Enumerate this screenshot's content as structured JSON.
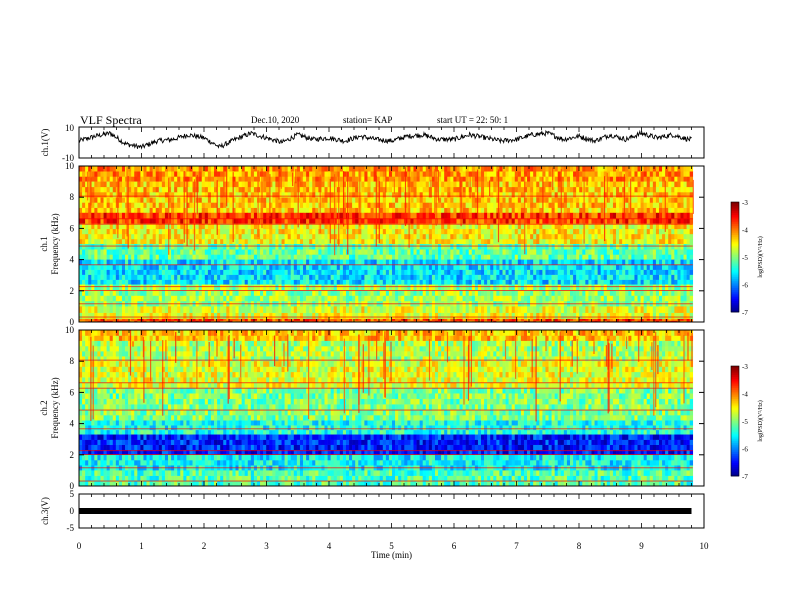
{
  "header": {
    "title": "VLF Spectra",
    "date": "Dec.10, 2020",
    "station": "station= KAP",
    "start_ut": "start  UT =  22: 50: 1"
  },
  "chart_data": [
    {
      "type": "line",
      "panel": "ch.1",
      "ylabel": "ch.1(V)",
      "xlim": [
        0,
        10
      ],
      "ylim": [
        -10,
        10
      ],
      "yticks": [
        "10",
        "-10"
      ],
      "description_of_signal": "",
      "x": [
        0,
        0.25,
        0.5,
        0.75,
        1,
        1.25,
        1.5,
        1.75,
        2,
        2.25,
        2.5,
        2.75,
        3,
        3.25,
        3.5,
        3.75,
        4,
        4.25,
        4.5,
        4.75,
        5,
        5.25,
        5.5,
        5.75,
        6,
        6.25,
        6.5,
        6.75,
        7,
        7.25,
        7.5,
        7.75,
        8,
        8.25,
        8.5,
        8.75,
        9,
        9.25,
        9.5,
        9.75,
        9.8
      ],
      "y": [
        1,
        4,
        6,
        -1,
        -3,
        1,
        2,
        5,
        3,
        -3,
        2,
        6,
        3,
        0,
        5,
        2,
        3,
        1,
        4,
        2,
        1,
        4,
        5,
        2,
        2,
        5,
        3,
        1,
        2,
        5,
        6,
        2,
        4,
        1,
        5,
        2,
        6,
        3,
        5,
        2,
        2
      ]
    },
    {
      "type": "heatmap",
      "panel": "ch.1 spectrogram",
      "ylabel": "ch.1 Frequency (kHz)",
      "xlim": [
        0,
        10
      ],
      "ylim": [
        0,
        10
      ],
      "yticks": [
        "0",
        "2",
        "4",
        "6",
        "8",
        "10"
      ],
      "colorbar": {
        "label": "log(PSD)(V²/Hz)",
        "range": [
          -7,
          -3
        ],
        "ticks": [
          "-3",
          "-4",
          "-5",
          "-6",
          "-7"
        ]
      },
      "bands": [
        {
          "freq": [
            9.0,
            10.0
          ],
          "level": -4.1
        },
        {
          "freq": [
            7.0,
            9.0
          ],
          "level": -4.3
        },
        {
          "freq": [
            6.3,
            7.0
          ],
          "level": -3.7
        },
        {
          "freq": [
            5.0,
            6.3
          ],
          "level": -4.5
        },
        {
          "freq": [
            4.0,
            5.0
          ],
          "level": -5.1
        },
        {
          "freq": [
            2.4,
            4.0
          ],
          "level": -5.6
        },
        {
          "freq": [
            1.0,
            2.4
          ],
          "level": -4.9
        },
        {
          "freq": [
            0.2,
            1.0
          ],
          "level": -4.6
        },
        {
          "freq": [
            0.0,
            0.2
          ],
          "level": -3.8
        }
      ]
    },
    {
      "type": "heatmap",
      "panel": "ch.2 spectrogram",
      "ylabel": "ch.2 Frequency (kHz)",
      "xlim": [
        0,
        10
      ],
      "ylim": [
        0,
        10
      ],
      "yticks": [
        "0",
        "2",
        "4",
        "6",
        "8",
        "10"
      ],
      "colorbar": {
        "label": "log(PSD)(V²/Hz)",
        "range": [
          -7,
          -3
        ],
        "ticks": [
          "-3",
          "-4",
          "-5",
          "-6",
          "-7"
        ]
      },
      "bands": [
        {
          "freq": [
            9.3,
            10.0
          ],
          "level": -4.3
        },
        {
          "freq": [
            8.0,
            9.3
          ],
          "level": -4.8
        },
        {
          "freq": [
            6.3,
            8.0
          ],
          "level": -4.6
        },
        {
          "freq": [
            4.2,
            6.3
          ],
          "level": -5.0
        },
        {
          "freq": [
            3.3,
            4.2
          ],
          "level": -5.4
        },
        {
          "freq": [
            2.0,
            3.3
          ],
          "level": -6.4
        },
        {
          "freq": [
            1.0,
            2.0
          ],
          "level": -5.5
        },
        {
          "freq": [
            0.0,
            1.0
          ],
          "level": -5.2
        }
      ]
    },
    {
      "type": "line",
      "panel": "ch.3",
      "ylabel": "ch.3(V)",
      "xlim": [
        0,
        10
      ],
      "ylim": [
        -5,
        5
      ],
      "yticks": [
        "5",
        "0",
        "-5"
      ],
      "x": [
        0,
        9.8
      ],
      "y": [
        0,
        0
      ]
    }
  ],
  "xaxis": {
    "label": "Time (min)",
    "ticks": [
      "0",
      "1",
      "2",
      "3",
      "4",
      "5",
      "6",
      "7",
      "8",
      "9",
      "10"
    ]
  },
  "colors": {
    "low": "#00007f",
    "mid_low": "#00a0ff",
    "mid": "#00ff60",
    "mid_high": "#ffff00",
    "high": "#ff0000"
  }
}
